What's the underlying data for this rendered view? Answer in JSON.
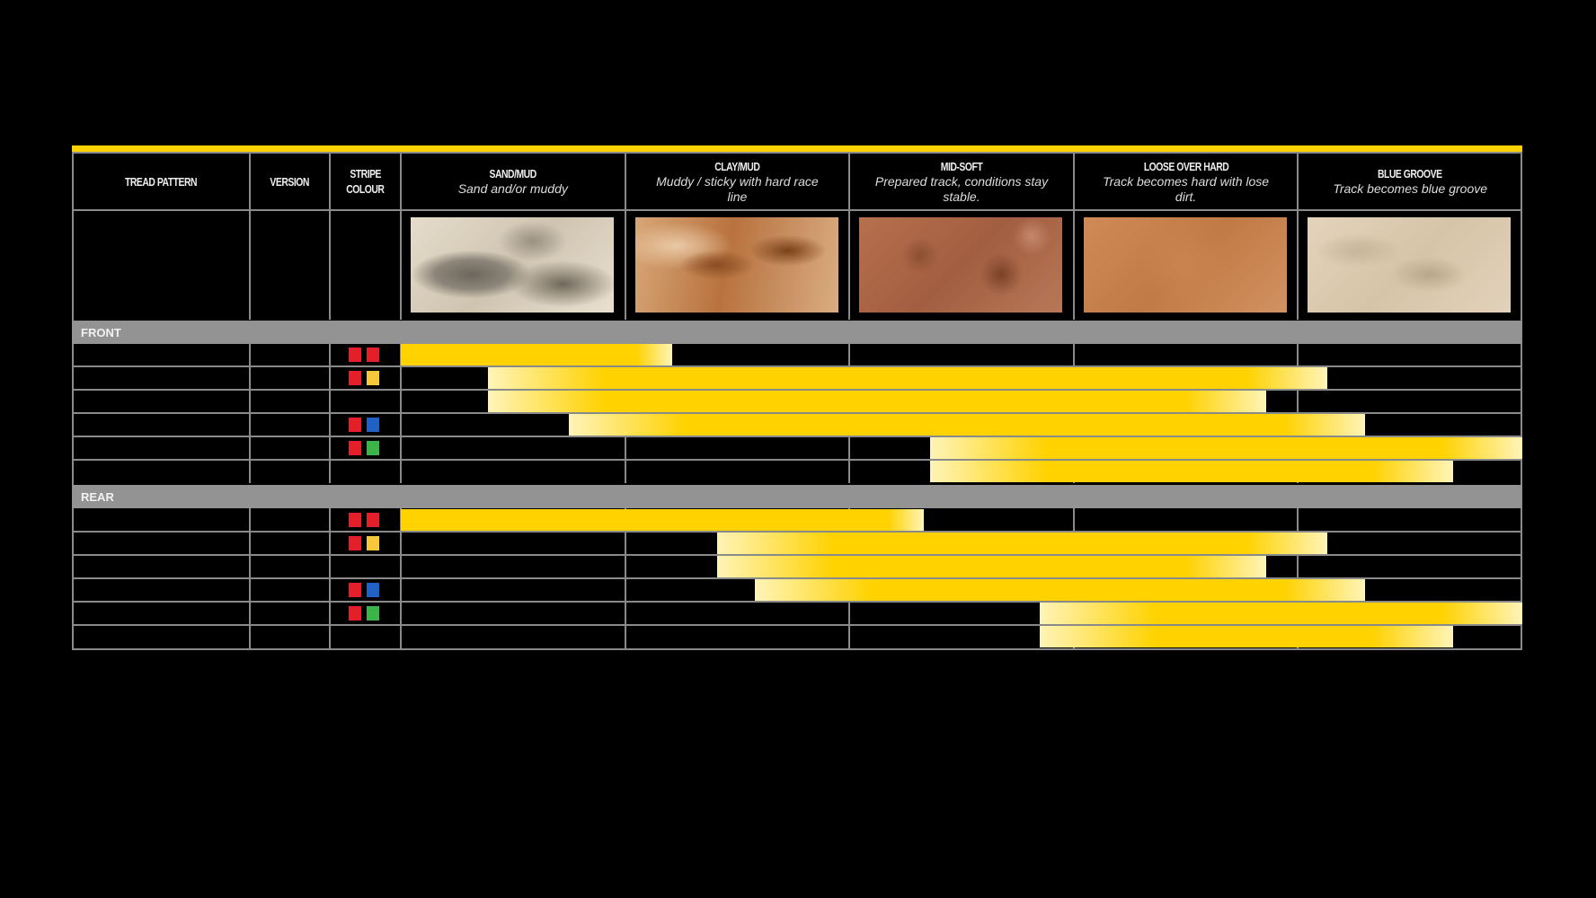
{
  "header": {
    "tread_pattern": "TREAD PATTERN",
    "version": "VERSION",
    "stripe_colour": [
      "STRIPE",
      "COLOUR"
    ],
    "conditions": [
      {
        "title": "SAND/MUD",
        "subtitle": "Sand and/or muddy",
        "texture": "sand"
      },
      {
        "title": "CLAY/MUD",
        "subtitle": "Muddy / sticky with hard race line",
        "texture": "clay"
      },
      {
        "title": "MID-SOFT",
        "subtitle": "Prepared track, conditions stay stable.",
        "texture": "midsoft"
      },
      {
        "title": "LOOSE OVER HARD",
        "subtitle": "Track becomes hard with lose dirt.",
        "texture": "loose"
      },
      {
        "title": "BLUE GROOVE",
        "subtitle": "Track becomes blue groove",
        "texture": "bluegroove"
      }
    ]
  },
  "sections": {
    "front": "FRONT",
    "rear": "REAR"
  },
  "colors": {
    "accent": "#ffd200",
    "bar_light": "#fff4b8",
    "red": "#e3202a",
    "yellow": "#f6c83c",
    "blue": "#1f62c4",
    "green": "#3db449",
    "grid": "#8a8a8a",
    "band": "#939393"
  },
  "chart_data": {
    "type": "bar",
    "orientation": "horizontal range",
    "categories": [
      "SAND/MUD",
      "CLAY/MUD",
      "MID-SOFT",
      "LOOSE OVER HARD",
      "BLUE GROOVE"
    ],
    "scale_note": "range in condition columns, 0 = start of SAND/MUD, 5 = end of BLUE GROOVE",
    "front": [
      {
        "stripe": [
          "red",
          "red"
        ],
        "start": 0,
        "end": 1.21
      },
      {
        "stripe": [
          "red",
          "yellow"
        ],
        "start": 0.39,
        "end": 4.13
      },
      {
        "stripe": [],
        "start": 0.39,
        "end": 3.86
      },
      {
        "stripe": [
          "red",
          "blue"
        ],
        "start": 0.75,
        "end": 4.3
      },
      {
        "stripe": [
          "red",
          "green"
        ],
        "start": 2.36,
        "end": 5
      },
      {
        "stripe": [],
        "start": 2.36,
        "end": 4.69
      }
    ],
    "rear": [
      {
        "stripe": [
          "red",
          "red"
        ],
        "start": 0,
        "end": 2.33
      },
      {
        "stripe": [
          "red",
          "yellow"
        ],
        "start": 1.41,
        "end": 4.13
      },
      {
        "stripe": [],
        "start": 1.41,
        "end": 3.86
      },
      {
        "stripe": [
          "red",
          "blue"
        ],
        "start": 1.58,
        "end": 4.3
      },
      {
        "stripe": [
          "red",
          "green"
        ],
        "start": 2.85,
        "end": 5
      },
      {
        "stripe": [],
        "start": 2.85,
        "end": 4.69
      }
    ]
  }
}
